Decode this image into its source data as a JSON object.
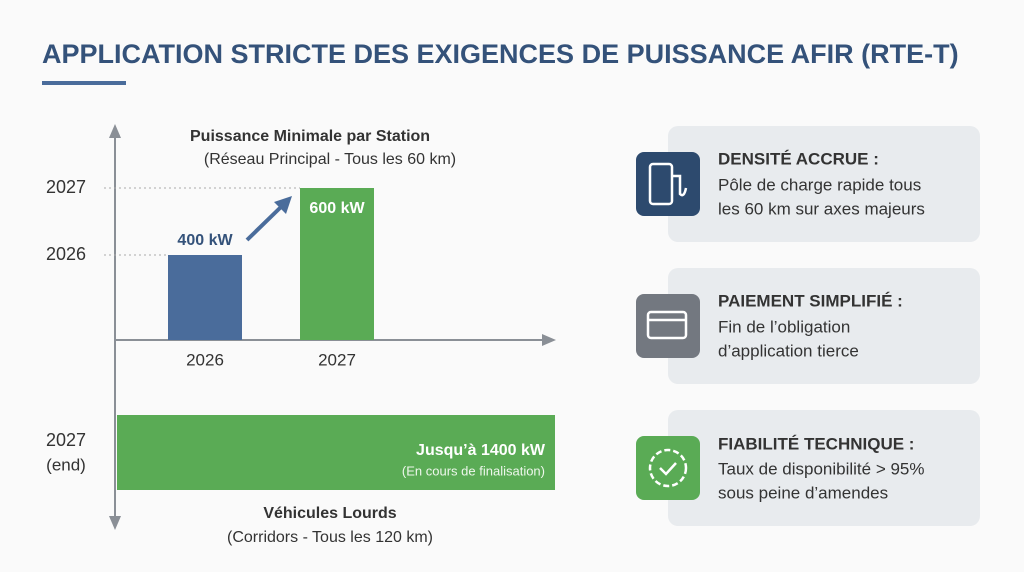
{
  "header": {
    "title": "APPLICATION STRICTE DES EXIGENCES DE PUISSANCE AFIR (RTE-T)"
  },
  "chart": {
    "title": "Puissance Minimale par Station",
    "subtitle": "(Réseau Principal - Tous les 60 km)",
    "y_labels": [
      "2027",
      "2026"
    ],
    "bars": [
      {
        "label": "400 kW",
        "category": "2026"
      },
      {
        "label": "600 kW",
        "category": "2027"
      }
    ],
    "heavy": {
      "y_label": "2027",
      "y_sublabel": "(end)",
      "label": "Jusqu’à 1400 kW",
      "note": "(En cours de finalisation)",
      "title": "Véhicules Lourds",
      "subtitle": "(Corridors - Tous les 120 km)"
    }
  },
  "cards": [
    {
      "title": "DENSITÉ ACCRUE :",
      "lines": [
        "Pôle de charge rapide tous",
        "les 60 km sur axes majeurs"
      ]
    },
    {
      "title": "PAIEMENT SIMPLIFIÉ :",
      "lines": [
        "Fin de l’obligation",
        "d’application tierce"
      ]
    },
    {
      "title": "FIABILITÉ TECHNIQUE :",
      "lines": [
        "Taux de disponibilité > 95%",
        "sous peine d’amendes"
      ]
    }
  ]
}
